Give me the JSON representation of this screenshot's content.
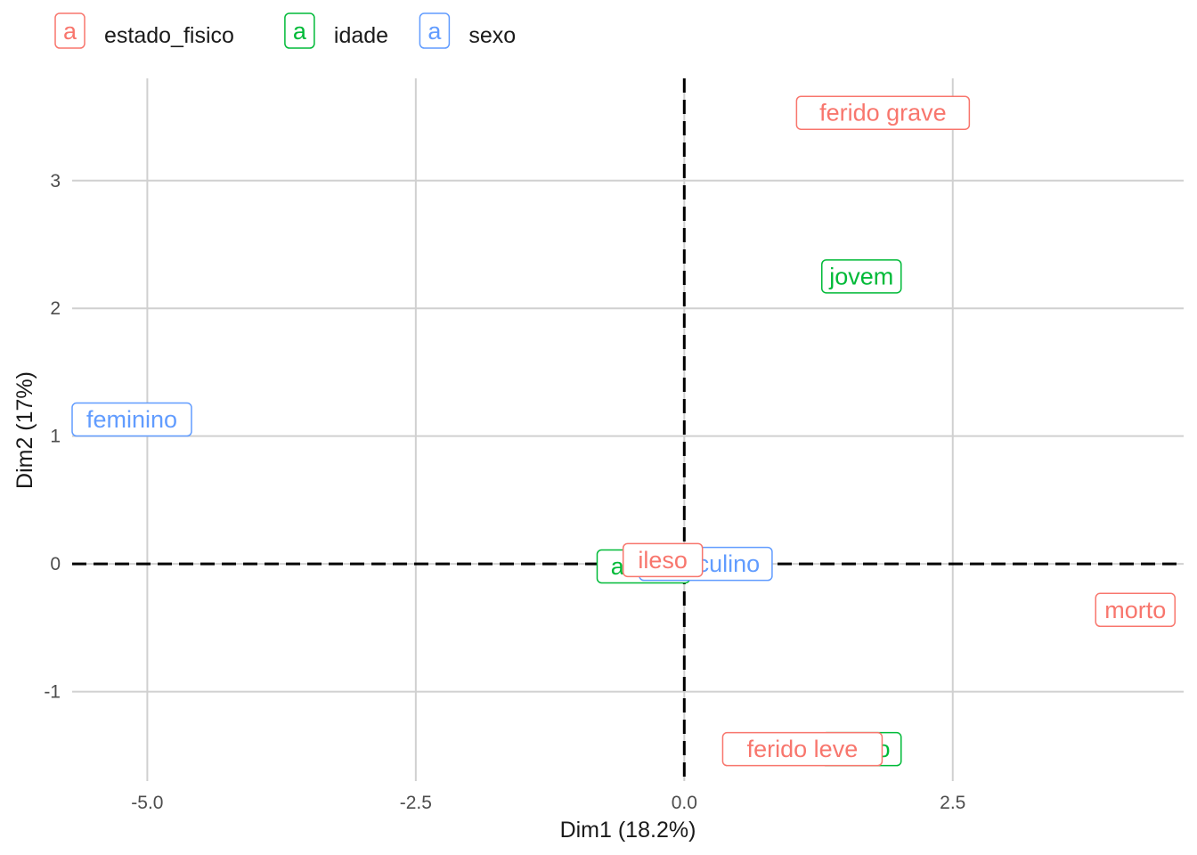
{
  "chart_data": {
    "type": "scatter",
    "title": "",
    "xlabel": "Dim1 (18.2%)",
    "ylabel": "Dim2 (17%)",
    "xlim": [
      -5.7,
      4.65
    ],
    "ylim": [
      -1.7,
      3.8
    ],
    "xticks": [
      -5.0,
      -2.5,
      0.0,
      2.5
    ],
    "xtick_labels": [
      "-5.0",
      "-2.5",
      "0.0",
      "2.5"
    ],
    "yticks": [
      -1,
      0,
      1,
      2,
      3
    ],
    "ytick_labels": [
      "-1",
      "0",
      "1",
      "2",
      "3"
    ],
    "grid": true,
    "reference_lines": {
      "x": 0,
      "y": 0,
      "style": "dashed"
    },
    "legend_position": "top-left",
    "legend": [
      {
        "name": "estado_fisico",
        "key": "a",
        "color": "#f8766d"
      },
      {
        "name": "idade",
        "key": "a",
        "color": "#00ba38"
      },
      {
        "name": "sexo",
        "key": "a",
        "color": "#619cff"
      }
    ],
    "points": [
      {
        "label": "jovem",
        "group": "idade",
        "x": 1.65,
        "y": 2.25
      },
      {
        "label": "adulto",
        "group": "idade",
        "x": -0.38,
        "y": -0.02
      },
      {
        "label": "idoso",
        "group": "idade",
        "x": 1.65,
        "y": -1.45
      },
      {
        "label": "feminino",
        "group": "sexo",
        "x": -5.25,
        "y": 1.13
      },
      {
        "label": "masculino",
        "group": "sexo",
        "x": 0.2,
        "y": 0.0
      },
      {
        "label": "ferido grave",
        "group": "estado_fisico",
        "x": 1.85,
        "y": 3.53
      },
      {
        "label": "morto",
        "group": "estado_fisico",
        "x": 4.2,
        "y": -0.36
      },
      {
        "label": "ileso",
        "group": "estado_fisico",
        "x": -0.2,
        "y": 0.03
      },
      {
        "label": "ferido leve",
        "group": "estado_fisico",
        "x": 1.1,
        "y": -1.45
      }
    ]
  }
}
